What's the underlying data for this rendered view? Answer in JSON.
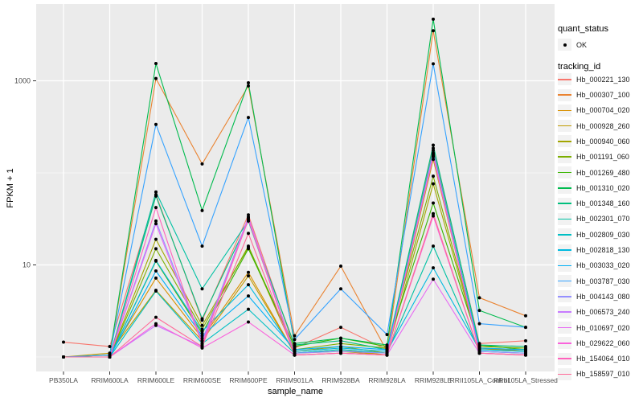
{
  "chart_data": {
    "type": "line",
    "title": "",
    "xlabel": "sample_name",
    "ylabel": "FPKM + 1",
    "y_scale": "log10",
    "panel_bg": "#EBEBEB",
    "grid_color": "#FFFFFF",
    "point_color": "#000000",
    "tick_text_color": "#4D4D4D",
    "y_major_ticks": [
      {
        "value": 1000,
        "label": "1000"
      },
      {
        "value": 10,
        "label": "10"
      }
    ],
    "y_minor_gridlines": [
      1,
      100
    ],
    "ylim": [
      0.9,
      6000
    ],
    "categories": [
      "PB350LA",
      "RRIM600LA",
      "RRIM600LE",
      "RRIM600SE",
      "RRIM600PE",
      "RRIM901LA",
      "RRIM928BA",
      "RRIM928LA",
      "RRIM928LE",
      "RRII105LA_Control",
      "RRII105LA_Stressed"
    ],
    "series": [
      {
        "name": "Hb_000221_130",
        "color": "#F8766D",
        "values": [
          1.45,
          1.3,
          58,
          2.5,
          35,
          1.25,
          2.1,
          1.2,
          185,
          1.4,
          1.5
        ]
      },
      {
        "name": "Hb_000307_100",
        "color": "#EA8331",
        "values": [
          1.0,
          1.05,
          1060,
          125,
          880,
          1.7,
          9.7,
          1.15,
          3500,
          4.4,
          2.8
        ]
      },
      {
        "name": "Hb_000704_020",
        "color": "#D89000",
        "values": [
          1.0,
          1.05,
          7.2,
          1.6,
          8.3,
          1.1,
          1.2,
          1.05,
          160,
          1.25,
          1.15
        ]
      },
      {
        "name": "Hb_000928_260",
        "color": "#C09B00",
        "values": [
          1.0,
          1.1,
          5.3,
          1.5,
          7.6,
          1.1,
          1.15,
          1.05,
          140,
          1.2,
          1.2
        ]
      },
      {
        "name": "Hb_000940_060",
        "color": "#A3A500",
        "values": [
          1.0,
          1.0,
          19,
          2.2,
          15.5,
          1.15,
          1.3,
          1.1,
          76,
          1.25,
          1.2
        ]
      },
      {
        "name": "Hb_001191_060",
        "color": "#7CAE00",
        "values": [
          1.0,
          1.0,
          15,
          2.0,
          16,
          1.2,
          1.4,
          1.25,
          92,
          1.3,
          1.25
        ]
      },
      {
        "name": "Hb_001269_480",
        "color": "#39B600",
        "values": [
          1.0,
          1.0,
          11,
          1.8,
          15,
          1.3,
          1.6,
          1.3,
          47,
          1.35,
          1.2
        ]
      },
      {
        "name": "Hb_001310_020",
        "color": "#00BB4E",
        "values": [
          1.0,
          1.05,
          1540,
          39,
          950,
          1.4,
          1.6,
          1.35,
          4670,
          3.2,
          2.1
        ]
      },
      {
        "name": "Hb_001348_160",
        "color": "#00BF7D",
        "values": [
          1.0,
          1.0,
          56,
          2.6,
          30,
          1.35,
          1.5,
          1.2,
          200,
          1.35,
          1.3
        ]
      },
      {
        "name": "Hb_002301_070",
        "color": "#00C1A3",
        "values": [
          1.0,
          1.0,
          62,
          5.5,
          30,
          1.1,
          1.2,
          1.1,
          16,
          1.15,
          1.1
        ]
      },
      {
        "name": "Hb_002809_030",
        "color": "#00BFC4",
        "values": [
          1.0,
          1.0,
          5.2,
          1.4,
          3.3,
          1.1,
          1.2,
          1.1,
          175,
          1.2,
          1.15
        ]
      },
      {
        "name": "Hb_002818_130",
        "color": "#00BAE0",
        "values": [
          1.0,
          1.0,
          11.2,
          1.9,
          6.1,
          1.15,
          1.25,
          1.15,
          9.3,
          1.2,
          1.15
        ]
      },
      {
        "name": "Hb_003033_020",
        "color": "#00B0F6",
        "values": [
          1.0,
          1.0,
          8.6,
          1.7,
          4.6,
          1.2,
          1.3,
          1.2,
          150,
          1.25,
          1.2
        ]
      },
      {
        "name": "Hb_003787_030",
        "color": "#35A2FF",
        "values": [
          1.0,
          1.05,
          336,
          16,
          400,
          1.55,
          5.5,
          1.75,
          1530,
          2.3,
          2.1
        ]
      },
      {
        "name": "Hb_004143_080",
        "color": "#9590FF",
        "values": [
          1.0,
          1.0,
          30,
          1.5,
          33,
          1.1,
          1.15,
          1.1,
          155,
          1.15,
          1.1
        ]
      },
      {
        "name": "Hb_006573_240",
        "color": "#C77CFF",
        "values": [
          1.0,
          1.0,
          2.2,
          1.3,
          33,
          1.05,
          1.1,
          1.05,
          165,
          1.1,
          1.05
        ]
      },
      {
        "name": "Hb_010697_020",
        "color": "#E76BF3",
        "values": [
          1.0,
          1.0,
          28,
          1.4,
          32,
          1.05,
          1.1,
          1.05,
          7.0,
          1.1,
          1.05
        ]
      },
      {
        "name": "Hb_029622_060",
        "color": "#FA62DB",
        "values": [
          1.0,
          1.0,
          2.3,
          1.25,
          2.4,
          1.05,
          1.1,
          1.05,
          34,
          1.1,
          1.05
        ]
      },
      {
        "name": "Hb_154064_010",
        "color": "#FF62BC",
        "values": [
          1.0,
          1.0,
          42,
          1.35,
          31,
          1.05,
          1.1,
          1.05,
          150,
          1.1,
          1.05
        ]
      },
      {
        "name": "Hb_158597_010",
        "color": "#FF6A98",
        "values": [
          1.0,
          1.0,
          2.7,
          1.3,
          22,
          1.05,
          1.1,
          1.05,
          36,
          1.1,
          1.05
        ]
      }
    ],
    "legend_position": "right"
  },
  "legend": {
    "quant_status_title": "quant_status",
    "quant_status_items": [
      {
        "label": "OK",
        "marker": "black-point"
      }
    ],
    "tracking_id_title": "tracking_id"
  }
}
